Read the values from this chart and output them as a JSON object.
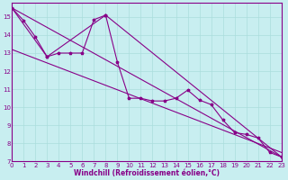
{
  "background_color": "#c8eef0",
  "grid_color": "#aadddd",
  "line_color": "#880088",
  "marker": "*",
  "xlabel": "Windchill (Refroidissement éolien,°C)",
  "ylim": [
    7,
    15.8
  ],
  "xlim": [
    0,
    23
  ],
  "yticks": [
    7,
    8,
    9,
    10,
    11,
    12,
    13,
    14,
    15
  ],
  "xticks": [
    0,
    1,
    2,
    3,
    4,
    5,
    6,
    7,
    8,
    9,
    10,
    11,
    12,
    13,
    14,
    15,
    16,
    17,
    18,
    19,
    20,
    21,
    22,
    23
  ],
  "line1_x": [
    0,
    1,
    2,
    3,
    4,
    5,
    6,
    7,
    8,
    9,
    10,
    11,
    12,
    13,
    14,
    15,
    16,
    17,
    18,
    19,
    20,
    21,
    22,
    23
  ],
  "line1_y": [
    15.5,
    14.8,
    13.9,
    12.8,
    13.0,
    13.0,
    13.0,
    14.85,
    15.1,
    12.5,
    10.5,
    10.5,
    10.35,
    10.35,
    10.5,
    10.95,
    10.4,
    10.15,
    9.3,
    8.6,
    8.5,
    8.3,
    7.5,
    7.25
  ],
  "line2_x": [
    0,
    23
  ],
  "line2_y": [
    15.5,
    7.25
  ],
  "line3_x": [
    0,
    23
  ],
  "line3_y": [
    13.2,
    7.5
  ],
  "line4_x": [
    0,
    3,
    8,
    23
  ],
  "line4_y": [
    15.5,
    12.8,
    15.1,
    7.25
  ]
}
